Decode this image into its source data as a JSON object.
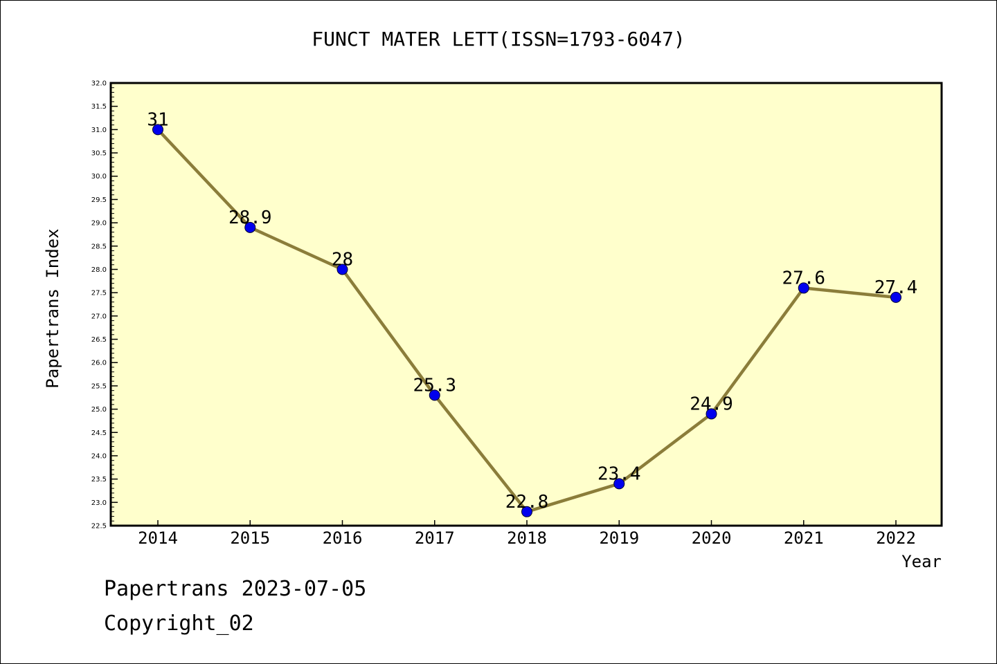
{
  "chart_data": {
    "type": "line",
    "title": "FUNCT MATER LETT(ISSN=1793-6047)",
    "xlabel": "Year",
    "ylabel": "Papertrans Index",
    "categories": [
      "2014",
      "2015",
      "2016",
      "2017",
      "2018",
      "2019",
      "2020",
      "2021",
      "2022"
    ],
    "series": [
      {
        "values": [
          31,
          28.9,
          28,
          25.3,
          22.8,
          23.4,
          24.9,
          27.6,
          27.4
        ],
        "labels": [
          "31",
          "28.9",
          "28",
          "25.3",
          "22.8",
          "23.4",
          "24.9",
          "27.6",
          "27.4"
        ]
      }
    ],
    "ylim": [
      22.5,
      32.0
    ],
    "y_ticks": [
      "22.5",
      "23.0",
      "23.5",
      "24.0",
      "24.5",
      "25.0",
      "25.5",
      "26.0",
      "26.5",
      "27.0",
      "27.5",
      "28.0",
      "28.5",
      "29.0",
      "29.5",
      "30.0",
      "30.5",
      "31.0",
      "31.5",
      "32.0"
    ],
    "grid": false,
    "legend": "none",
    "colors": {
      "plot_background": "#ffffcc",
      "line": "#8b7d3a",
      "marker": "#0000ee",
      "marker_edge": "#000033",
      "axis": "#000000"
    }
  },
  "footer": {
    "source": "Papertrans 2023-07-05",
    "copyright": "Copyright_02"
  }
}
